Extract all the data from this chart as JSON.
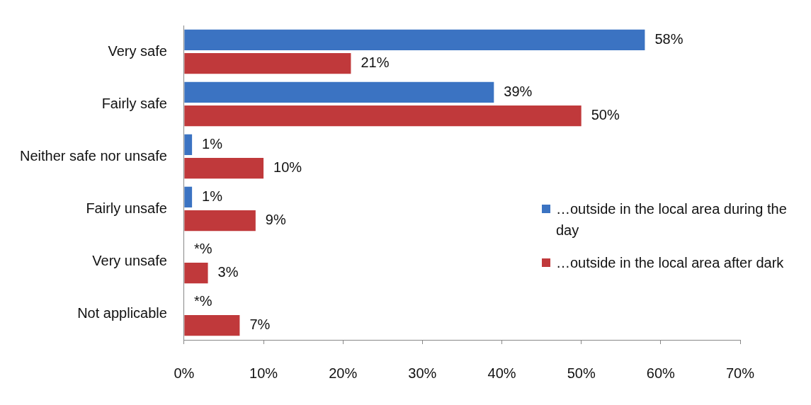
{
  "chart_data": {
    "type": "bar",
    "orientation": "horizontal",
    "categories": [
      "Very safe",
      "Fairly safe",
      "Neither safe nor unsafe",
      "Fairly unsafe",
      "Very unsafe",
      "Not applicable"
    ],
    "series": [
      {
        "name": "…outside in the local area during the day",
        "color": "#3b73c2",
        "values": [
          58,
          39,
          1,
          1,
          0,
          0
        ],
        "value_labels": [
          "58%",
          "39%",
          "1%",
          "1%",
          "*%",
          "*%"
        ]
      },
      {
        "name": "…outside in the local area after dark",
        "color": "#c0393b",
        "values": [
          21,
          50,
          10,
          9,
          3,
          7
        ],
        "value_labels": [
          "21%",
          "50%",
          "10%",
          "9%",
          "3%",
          "7%"
        ]
      }
    ],
    "xlim": [
      0,
      70
    ],
    "xticks": [
      {
        "value": 0,
        "label": "0%"
      },
      {
        "value": 10,
        "label": "10%"
      },
      {
        "value": 20,
        "label": "20%"
      },
      {
        "value": 30,
        "label": "30%"
      },
      {
        "value": 40,
        "label": "40%"
      },
      {
        "value": 50,
        "label": "50%"
      },
      {
        "value": 60,
        "label": "60%"
      },
      {
        "value": 70,
        "label": "70%"
      }
    ],
    "grid": false,
    "legend": "right"
  }
}
